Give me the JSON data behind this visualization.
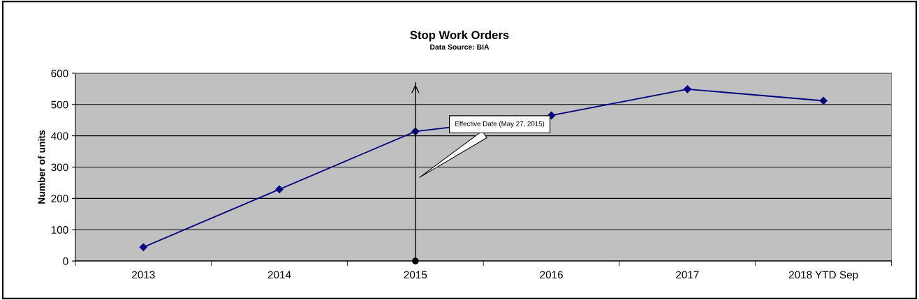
{
  "chart_data": {
    "type": "line",
    "title": "Stop Work Orders",
    "subtitle": "Data Source: BIA",
    "ylabel": "Number of units",
    "categories": [
      "2013",
      "2014",
      "2015",
      "2016",
      "2017",
      "2018 YTD Sep"
    ],
    "series": [
      {
        "color": "#000080",
        "values": [
          44,
          229,
          414,
          465,
          549,
          512
        ]
      }
    ],
    "ylim": [
      0,
      600
    ],
    "yticks": [
      0,
      100,
      200,
      300,
      400,
      500,
      600
    ],
    "grid": "y",
    "marker": "diamond",
    "line_style": "solid",
    "legend": false,
    "ref_lines": [
      {
        "axis": "x",
        "value": "2015",
        "label": "Effective Date (May 27, 2015)",
        "color": "#000000"
      }
    ]
  }
}
